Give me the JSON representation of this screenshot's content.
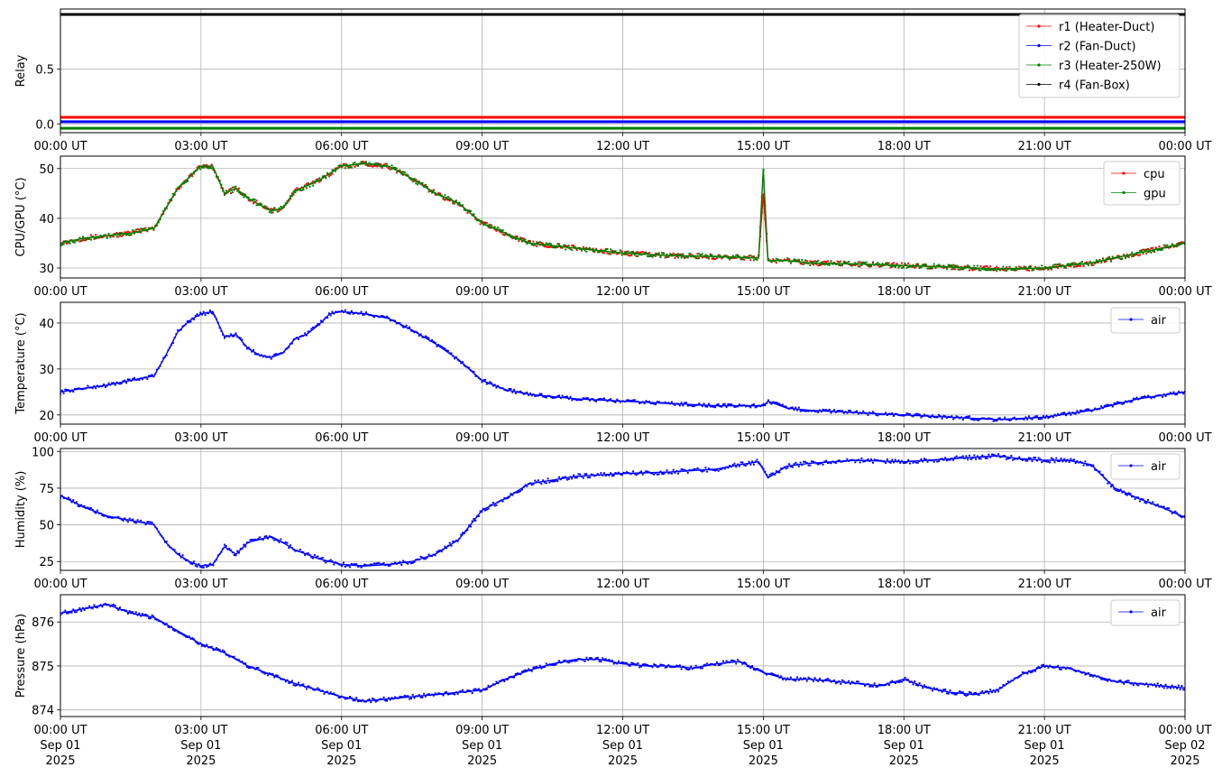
{
  "chart_data": [
    {
      "type": "line",
      "ylabel": "Relay",
      "yticks": [
        "0.0",
        "0.5"
      ],
      "ylim": [
        -0.08,
        1.05
      ],
      "xticks": [
        "00:00 UT",
        "03:00 UT",
        "06:00 UT",
        "09:00 UT",
        "12:00 UT",
        "15:00 UT",
        "18:00 UT",
        "21:00 UT",
        "00:00 UT"
      ],
      "legend": "top-right",
      "grid": true,
      "series": [
        {
          "name": "r1 (Heater-Duct)",
          "color": "#ff0000",
          "x": [
            0,
            24
          ],
          "y": [
            0.06,
            0.06
          ]
        },
        {
          "name": "r2 (Fan-Duct)",
          "color": "#0000ff",
          "x": [
            0,
            24
          ],
          "y": [
            0.02,
            0.02
          ]
        },
        {
          "name": "r3 (Heater-250W)",
          "color": "#008000",
          "x": [
            0,
            24
          ],
          "y": [
            -0.04,
            -0.04
          ]
        },
        {
          "name": "r4 (Fan-Box)",
          "color": "#000000",
          "x": [
            0,
            24
          ],
          "y": [
            1.0,
            1.0
          ]
        }
      ]
    },
    {
      "type": "line",
      "ylabel": "CPU/GPU (°C)",
      "yticks": [
        "30",
        "40",
        "50"
      ],
      "ylim": [
        28,
        52.5
      ],
      "xticks": [
        "00:00 UT",
        "03:00 UT",
        "06:00 UT",
        "09:00 UT",
        "12:00 UT",
        "15:00 UT",
        "18:00 UT",
        "21:00 UT",
        "00:00 UT"
      ],
      "legend": "top-right",
      "grid": true,
      "series": [
        {
          "name": "cpu",
          "color": "#ff0000",
          "x": [
            0,
            0.5,
            1,
            1.5,
            2,
            2.5,
            3,
            3.25,
            3.5,
            3.75,
            4,
            4.5,
            4.75,
            5,
            5.5,
            6,
            6.5,
            7,
            7.5,
            8,
            8.5,
            9,
            9.5,
            10,
            11,
            12,
            13,
            14,
            14.9,
            15.0,
            15.1,
            15.2,
            15.5,
            16,
            17,
            18,
            19,
            20,
            21,
            22,
            23,
            24
          ],
          "y": [
            35,
            36,
            36.5,
            37,
            38,
            46,
            50.5,
            50.5,
            45,
            46,
            44,
            41.5,
            42,
            45.5,
            47.5,
            50.5,
            51,
            50.5,
            48,
            45,
            43,
            39,
            37,
            35,
            34,
            33,
            32.5,
            32.3,
            32,
            45,
            31.5,
            31.5,
            31.5,
            31,
            30.8,
            30.5,
            30.2,
            29.8,
            30,
            31,
            33,
            35
          ]
        },
        {
          "name": "gpu",
          "color": "#008000",
          "x": [
            0,
            0.5,
            1,
            1.5,
            2,
            2.5,
            3,
            3.25,
            3.5,
            3.75,
            4,
            4.5,
            4.75,
            5,
            5.5,
            6,
            6.5,
            7,
            7.5,
            8,
            8.5,
            9,
            9.5,
            10,
            11,
            12,
            13,
            14,
            14.9,
            15.0,
            15.1,
            15.2,
            15.5,
            16,
            17,
            18,
            19,
            20,
            21,
            22,
            23,
            24
          ],
          "y": [
            35,
            36,
            36.5,
            37,
            38,
            46,
            50.5,
            50.5,
            45,
            46,
            44,
            41.5,
            42,
            45.5,
            47.5,
            50.5,
            51,
            50.5,
            48,
            45,
            43,
            39,
            37,
            35,
            34,
            33,
            32.5,
            32.3,
            32,
            50,
            31.5,
            31.5,
            31.5,
            31,
            30.8,
            30.5,
            30.2,
            29.8,
            30,
            31,
            33,
            35
          ]
        }
      ]
    },
    {
      "type": "line",
      "ylabel": "Temperature (°C)",
      "yticks": [
        "20",
        "30",
        "40"
      ],
      "ylim": [
        18,
        44.5
      ],
      "xticks": [
        "00:00 UT",
        "03:00 UT",
        "06:00 UT",
        "09:00 UT",
        "12:00 UT",
        "15:00 UT",
        "18:00 UT",
        "21:00 UT",
        "00:00 UT"
      ],
      "legend": "top-right",
      "grid": true,
      "series": [
        {
          "name": "air",
          "color": "#0000ff",
          "x": [
            0,
            0.5,
            1,
            1.5,
            2,
            2.25,
            2.5,
            2.75,
            3,
            3.25,
            3.5,
            3.75,
            4,
            4.25,
            4.5,
            4.75,
            5,
            5.25,
            5.5,
            5.75,
            6,
            6.5,
            7,
            7.5,
            8,
            8.5,
            9,
            9.5,
            10,
            11,
            12,
            13,
            14,
            14.5,
            15,
            15.1,
            15.5,
            16,
            17,
            18,
            19,
            20,
            21,
            22,
            23,
            24
          ],
          "y": [
            25,
            25.8,
            26.5,
            27.5,
            28.5,
            33,
            38,
            40.5,
            42,
            42.5,
            37,
            37.5,
            34.5,
            33,
            32.5,
            33.5,
            36.5,
            37.5,
            39.5,
            42,
            42.5,
            42,
            41,
            38.5,
            35.5,
            32,
            27.5,
            25.5,
            24.5,
            23.5,
            23,
            22.5,
            22,
            22,
            22,
            23,
            21.5,
            21,
            20.5,
            20,
            19.5,
            19,
            19.5,
            21,
            23.5,
            25
          ]
        }
      ]
    },
    {
      "type": "line",
      "ylabel": "Humidity (%)",
      "yticks": [
        "25",
        "50",
        "75",
        "100"
      ],
      "ylim": [
        19,
        102
      ],
      "xticks": [
        "00:00 UT",
        "03:00 UT",
        "06:00 UT",
        "09:00 UT",
        "12:00 UT",
        "15:00 UT",
        "18:00 UT",
        "21:00 UT",
        "00:00 UT"
      ],
      "legend": "top-right",
      "grid": true,
      "series": [
        {
          "name": "air",
          "color": "#0000ff",
          "x": [
            0,
            0.5,
            1,
            1.5,
            2,
            2.25,
            2.5,
            2.75,
            3,
            3.25,
            3.5,
            3.75,
            4,
            4.25,
            4.5,
            4.75,
            5,
            5.5,
            6,
            6.5,
            7,
            7.5,
            8,
            8.5,
            9,
            9.5,
            10,
            11,
            12,
            13,
            14,
            14.5,
            14.9,
            15.1,
            15.5,
            16,
            17,
            18,
            19,
            19.5,
            20,
            20.5,
            21,
            21.5,
            22,
            22.5,
            23,
            23.5,
            24
          ],
          "y": [
            70,
            62,
            56,
            53,
            50,
            38,
            30,
            25,
            22,
            23,
            35,
            30,
            38,
            40,
            42,
            38,
            33,
            27,
            23,
            22,
            23,
            25,
            30,
            40,
            60,
            68,
            78,
            83,
            85,
            86,
            88,
            91,
            93,
            82,
            90,
            92,
            94,
            93,
            95,
            96,
            97,
            95,
            94,
            94,
            91,
            75,
            68,
            62,
            55
          ]
        }
      ]
    },
    {
      "type": "line",
      "ylabel": "Pressure (hPa)",
      "yticks": [
        "874",
        "875",
        "876"
      ],
      "ylim": [
        873.85,
        876.62
      ],
      "xticks": [
        "00:00 UT\nSep 01\n2025",
        "03:00 UT\nSep 01\n2025",
        "06:00 UT\nSep 01\n2025",
        "09:00 UT\nSep 01\n2025",
        "12:00 UT\nSep 01\n2025",
        "15:00 UT\nSep 01\n2025",
        "18:00 UT\nSep 01\n2025",
        "21:00 UT\nSep 01\n2025",
        "00:00 UT\nSep 02\n2025"
      ],
      "legend": "top-right",
      "grid": true,
      "series": [
        {
          "name": "air",
          "color": "#0000ff",
          "x": [
            0,
            0.5,
            1,
            1.5,
            2,
            2.5,
            3,
            3.5,
            4,
            4.5,
            5,
            5.5,
            6,
            6.5,
            7,
            7.5,
            8,
            8.5,
            9,
            9.5,
            10,
            10.5,
            11,
            11.5,
            12,
            12.5,
            13,
            13.5,
            14,
            14.5,
            15,
            15.5,
            16,
            16.5,
            17,
            17.5,
            18,
            18.5,
            19,
            19.5,
            20,
            20.5,
            21,
            21.5,
            22,
            22.5,
            23,
            23.5,
            24
          ],
          "y": [
            876.2,
            876.3,
            876.4,
            876.2,
            876.1,
            875.8,
            875.5,
            875.3,
            875.0,
            874.8,
            874.6,
            874.45,
            874.3,
            874.2,
            874.25,
            874.3,
            874.35,
            874.4,
            874.45,
            874.7,
            874.9,
            875.05,
            875.15,
            875.15,
            875.05,
            875.0,
            875.0,
            874.95,
            875.05,
            875.1,
            874.85,
            874.7,
            874.7,
            874.65,
            874.6,
            874.55,
            874.7,
            874.5,
            874.4,
            874.35,
            874.45,
            874.8,
            875.0,
            874.95,
            874.8,
            874.65,
            874.6,
            874.55,
            874.5
          ]
        }
      ]
    }
  ]
}
